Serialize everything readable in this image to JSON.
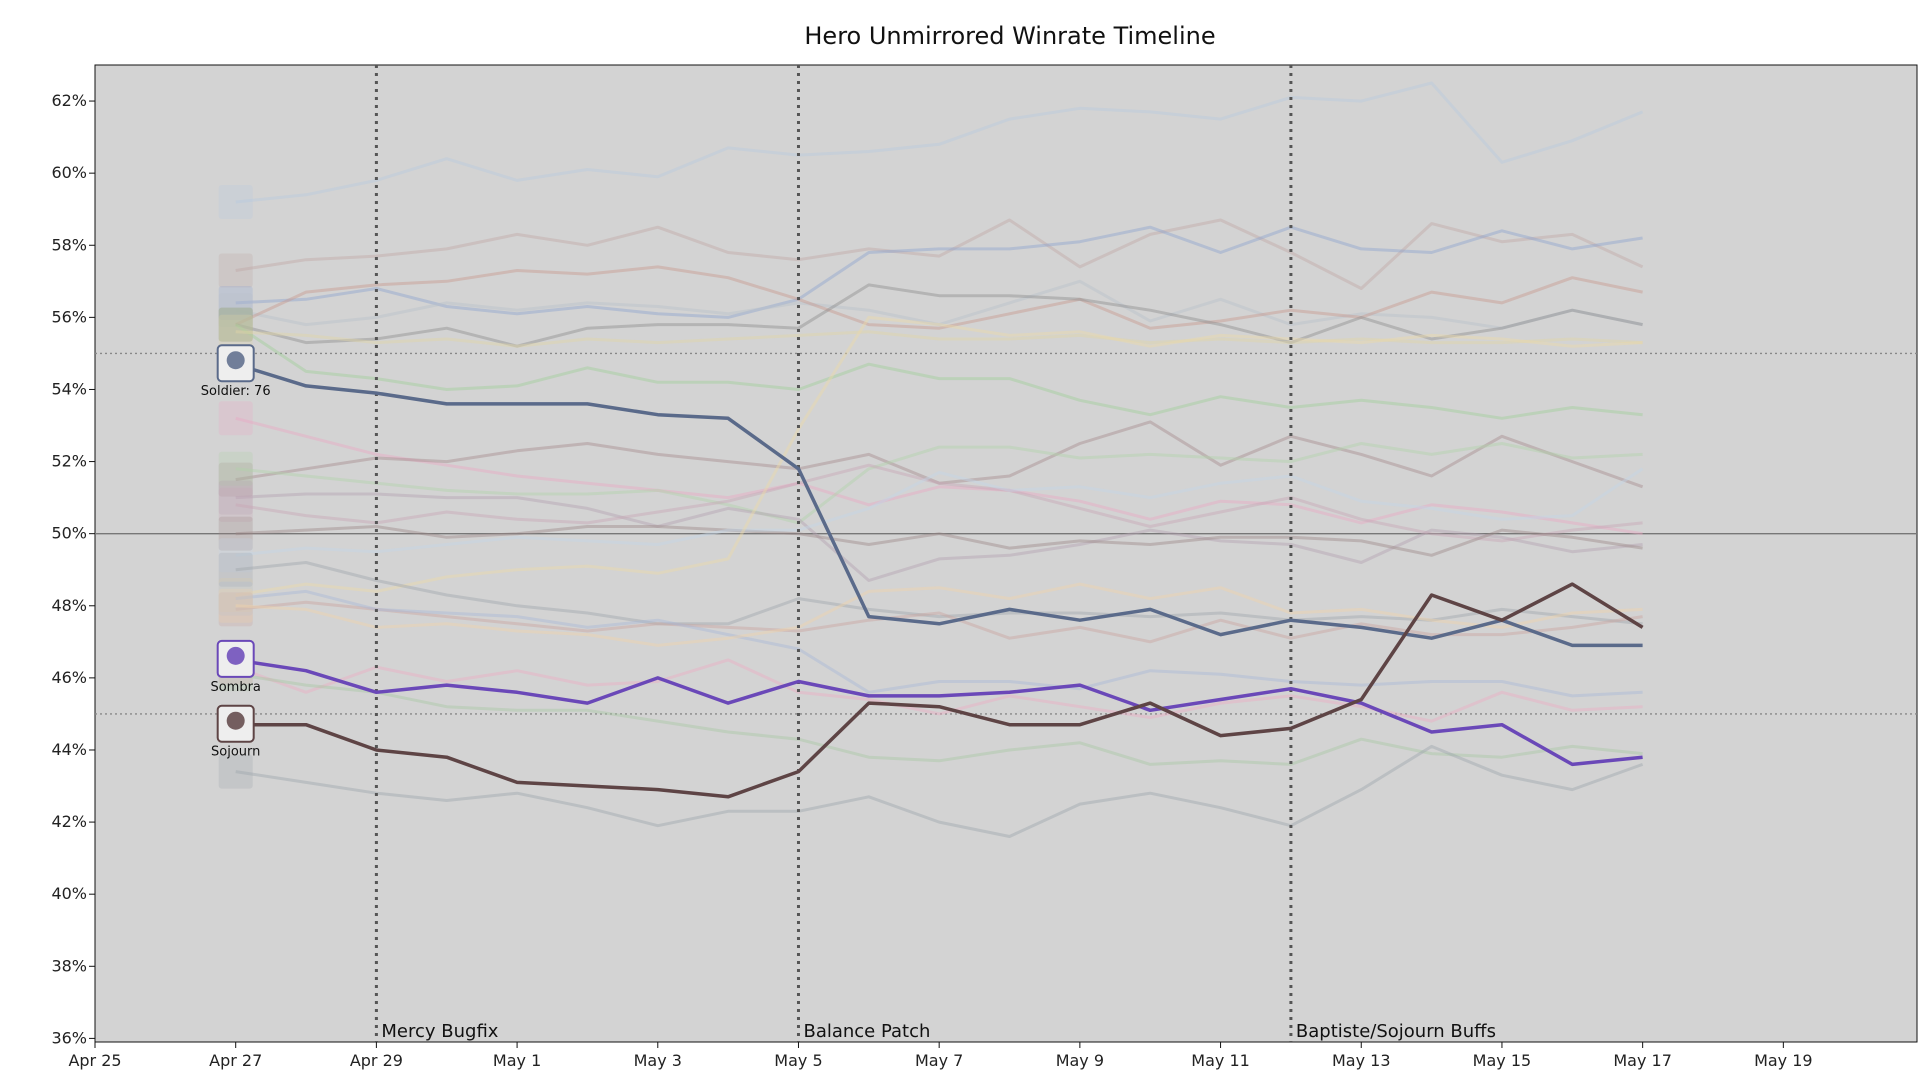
{
  "chart_data": {
    "type": "line",
    "title": "Hero Unmirrored Winrate Timeline",
    "xlabel": "",
    "ylabel": "",
    "x_ticks": [
      "Apr 25",
      "Apr 27",
      "Apr 29",
      "May 1",
      "May 3",
      "May 5",
      "May 7",
      "May 9",
      "May 11",
      "May 13",
      "May 15",
      "May 17",
      "May 19"
    ],
    "x_tick_days": [
      0,
      2,
      4,
      6,
      8,
      10,
      12,
      14,
      16,
      18,
      20,
      22,
      24
    ],
    "y_ticks": [
      "36%",
      "38%",
      "40%",
      "42%",
      "44%",
      "46%",
      "48%",
      "50%",
      "52%",
      "54%",
      "56%",
      "58%",
      "60%",
      "62%"
    ],
    "ylim": [
      35.9,
      63
    ],
    "reference_lines": [
      {
        "value": 50,
        "style": "solid"
      },
      {
        "value": 55,
        "style": "dotted"
      },
      {
        "value": 45,
        "style": "dotted"
      }
    ],
    "events": [
      {
        "label": "Mercy Bugfix",
        "date": "Apr 29"
      },
      {
        "label": "Balance Patch",
        "date": "May 5"
      },
      {
        "label": "Baptiste/Sojourn Buffs",
        "date": "Baptiste/Sojourn Buffs"
      }
    ],
    "dates": [
      "Apr 27",
      "Apr 28",
      "Apr 29",
      "Apr 30",
      "May 1",
      "May 2",
      "May 3",
      "May 4",
      "May 5",
      "May 6",
      "May 7",
      "May 8",
      "May 9",
      "May 10",
      "May 11",
      "May 12",
      "May 13",
      "May 14",
      "May 15",
      "May 16",
      "May 17"
    ],
    "series": [
      {
        "name": "Soldier: 76",
        "color": "#5a6a8a",
        "highlight": true,
        "values": [
          54.7,
          54.1,
          53.9,
          53.6,
          53.6,
          53.6,
          53.3,
          53.2,
          51.8,
          47.7,
          47.5,
          47.9,
          47.6,
          47.9,
          47.2,
          47.6,
          47.4,
          47.1,
          47.6,
          46.9,
          46.9
        ]
      },
      {
        "name": "Sombra",
        "color": "#6a48b8",
        "highlight": true,
        "values": [
          46.5,
          46.2,
          45.6,
          45.8,
          45.6,
          45.3,
          46.0,
          45.3,
          45.9,
          45.5,
          45.5,
          45.6,
          45.8,
          45.1,
          45.4,
          45.7,
          45.3,
          44.5,
          44.7,
          43.6,
          43.8
        ]
      },
      {
        "name": "Sojourn",
        "color": "#5e4445",
        "highlight": true,
        "values": [
          44.7,
          44.7,
          44.0,
          43.8,
          43.1,
          43.0,
          42.9,
          42.7,
          43.4,
          45.3,
          45.2,
          44.7,
          44.7,
          45.3,
          44.4,
          44.6,
          45.4,
          48.3,
          47.6,
          48.6,
          47.4
        ]
      },
      {
        "color": "#b7c9dd",
        "values": [
          59.2,
          59.4,
          59.8,
          60.4,
          59.8,
          60.1,
          59.9,
          60.7,
          60.5,
          60.6,
          60.8,
          61.5,
          61.8,
          61.7,
          61.5,
          62.1,
          62.0,
          62.5,
          60.3,
          60.9,
          61.7
        ]
      },
      {
        "color": "#c0a9a6",
        "values": [
          57.3,
          57.6,
          57.7,
          57.9,
          58.3,
          58.0,
          58.5,
          57.8,
          57.6,
          57.9,
          57.7,
          58.7,
          57.4,
          58.3,
          58.7,
          57.8,
          56.8,
          58.6,
          58.1,
          58.3,
          57.4
        ]
      },
      {
        "color": "#8ea5cf",
        "values": [
          56.4,
          56.5,
          56.8,
          56.3,
          56.1,
          56.3,
          56.1,
          56.0,
          56.5,
          57.8,
          57.9,
          57.9,
          58.1,
          58.5,
          57.8,
          58.5,
          57.9,
          57.8,
          58.4,
          57.9,
          58.2
        ]
      },
      {
        "color": "#b9c0c9",
        "values": [
          56.2,
          55.8,
          56.0,
          56.4,
          56.2,
          56.4,
          56.3,
          56.1,
          56.4,
          56.2,
          55.8,
          56.4,
          57.0,
          55.9,
          56.5,
          55.8,
          56.1,
          56.0,
          55.7,
          56.2,
          55.8
        ]
      },
      {
        "color": "#c79a8e",
        "values": [
          55.8,
          56.7,
          56.9,
          57.0,
          57.3,
          57.2,
          57.4,
          57.1,
          56.5,
          55.8,
          55.7,
          56.1,
          56.5,
          55.7,
          55.9,
          56.2,
          56.0,
          56.7,
          56.4,
          57.1,
          56.7
        ]
      },
      {
        "color": "#8f8f8f",
        "values": [
          55.8,
          55.3,
          55.4,
          55.7,
          55.2,
          55.7,
          55.8,
          55.8,
          55.7,
          56.9,
          56.6,
          56.6,
          56.5,
          56.2,
          55.8,
          55.3,
          56.0,
          55.4,
          55.7,
          56.2,
          55.8
        ]
      },
      {
        "color": "#9fcf9a",
        "values": [
          55.8,
          54.5,
          54.3,
          54.0,
          54.1,
          54.6,
          54.2,
          54.2,
          54.0,
          54.7,
          54.3,
          54.3,
          53.7,
          53.3,
          53.8,
          53.5,
          53.7,
          53.5,
          53.2,
          53.5,
          53.3
        ]
      },
      {
        "color": "#e0d4a6",
        "values": [
          55.6,
          55.5,
          55.3,
          55.4,
          55.2,
          55.4,
          55.3,
          55.4,
          55.5,
          55.6,
          55.4,
          55.4,
          55.5,
          55.3,
          55.4,
          55.3,
          55.4,
          55.3,
          55.3,
          55.4,
          55.3
        ]
      },
      {
        "color": "#e8a9c4",
        "values": [
          53.2,
          52.7,
          52.2,
          51.9,
          51.6,
          51.4,
          51.2,
          51.0,
          51.4,
          50.8,
          51.3,
          51.2,
          50.9,
          50.4,
          50.9,
          50.8,
          50.3,
          50.8,
          50.6,
          50.3,
          50.0
        ]
      },
      {
        "color": "#a68b8f",
        "values": [
          51.5,
          51.8,
          52.1,
          52.0,
          52.3,
          52.5,
          52.2,
          52.0,
          51.8,
          52.2,
          51.4,
          51.6,
          52.5,
          53.1,
          51.9,
          52.7,
          52.2,
          51.6,
          52.7,
          52.0,
          51.3
        ]
      },
      {
        "color": "#b1d2aa",
        "values": [
          51.8,
          51.6,
          51.4,
          51.2,
          51.1,
          51.1,
          51.2,
          50.8,
          50.3,
          51.8,
          52.4,
          52.4,
          52.1,
          52.2,
          52.1,
          52.0,
          52.5,
          52.2,
          52.5,
          52.1,
          52.2
        ]
      },
      {
        "color": "#b3a2b1",
        "values": [
          51.0,
          51.1,
          51.1,
          51.0,
          51.0,
          50.7,
          50.2,
          50.7,
          50.4,
          48.7,
          49.3,
          49.4,
          49.7,
          50.1,
          49.8,
          49.7,
          49.2,
          50.1,
          49.9,
          49.5,
          49.7
        ]
      },
      {
        "color": "#c8a6b6",
        "values": [
          50.8,
          50.5,
          50.3,
          50.6,
          50.4,
          50.3,
          50.6,
          50.9,
          51.4,
          51.9,
          51.4,
          51.2,
          50.7,
          50.2,
          50.6,
          51.0,
          50.4,
          50.0,
          49.8,
          50.1,
          50.3
        ]
      },
      {
        "color": "#9d8a8a",
        "values": [
          50.0,
          50.1,
          50.2,
          49.9,
          50.0,
          50.2,
          50.2,
          50.1,
          50.0,
          49.7,
          50.0,
          49.6,
          49.8,
          49.7,
          49.9,
          49.9,
          49.8,
          49.4,
          50.1,
          49.9,
          49.6
        ]
      },
      {
        "color": "#c4d4e6",
        "values": [
          49.4,
          49.6,
          49.5,
          49.7,
          49.9,
          49.8,
          49.7,
          50.1,
          50.1,
          50.7,
          51.7,
          51.2,
          51.3,
          51.0,
          51.4,
          51.6,
          50.9,
          50.7,
          50.4,
          50.5,
          51.8
        ]
      },
      {
        "color": "#ecd9a9",
        "values": [
          48.3,
          48.6,
          48.4,
          48.8,
          49.0,
          49.1,
          48.9,
          49.3,
          52.9,
          56.0,
          55.8,
          55.5,
          55.6,
          55.2,
          55.5,
          55.4,
          55.3,
          55.5,
          55.4,
          55.2,
          55.3
        ]
      },
      {
        "color": "#a0a6ad",
        "values": [
          49.0,
          49.2,
          48.7,
          48.3,
          48.0,
          47.8,
          47.5,
          47.5,
          48.2,
          47.9,
          47.7,
          47.8,
          47.8,
          47.7,
          47.8,
          47.6,
          47.7,
          47.6,
          47.9,
          47.7,
          47.5
        ]
      },
      {
        "color": "#c9a39f",
        "values": [
          47.9,
          48.1,
          47.9,
          47.7,
          47.5,
          47.3,
          47.5,
          47.4,
          47.3,
          47.6,
          47.8,
          47.1,
          47.4,
          47.0,
          47.6,
          47.1,
          47.5,
          47.2,
          47.2,
          47.4,
          47.7
        ]
      },
      {
        "color": "#a8b9d6",
        "values": [
          48.2,
          48.4,
          47.9,
          47.8,
          47.7,
          47.4,
          47.6,
          47.2,
          46.8,
          45.6,
          45.9,
          45.9,
          45.7,
          46.2,
          46.1,
          45.9,
          45.8,
          45.9,
          45.9,
          45.5,
          45.6
        ]
      },
      {
        "color": "#f0d2aa",
        "values": [
          48.0,
          47.9,
          47.4,
          47.5,
          47.3,
          47.2,
          46.9,
          47.1,
          47.4,
          48.4,
          48.5,
          48.2,
          48.6,
          48.2,
          48.5,
          47.8,
          47.9,
          47.6,
          47.4,
          47.8,
          47.9
        ]
      },
      {
        "color": "#ecaec3",
        "values": [
          46.3,
          45.6,
          46.3,
          45.9,
          46.2,
          45.8,
          45.9,
          46.5,
          45.6,
          45.4,
          45.0,
          45.5,
          45.2,
          44.9,
          45.3,
          45.5,
          45.2,
          44.8,
          45.6,
          45.1,
          45.2
        ]
      },
      {
        "color": "#a9c7a3",
        "values": [
          46.1,
          45.8,
          45.6,
          45.2,
          45.1,
          45.1,
          44.8,
          44.5,
          44.3,
          43.8,
          43.7,
          44.0,
          44.2,
          43.6,
          43.7,
          43.6,
          44.3,
          43.9,
          43.8,
          44.1,
          43.9
        ]
      },
      {
        "color": "#9ea7ae",
        "values": [
          43.4,
          43.1,
          42.8,
          42.6,
          42.8,
          42.4,
          41.9,
          42.3,
          42.3,
          42.7,
          42.0,
          41.6,
          42.5,
          42.8,
          42.4,
          41.9,
          42.9,
          44.1,
          43.3,
          42.9,
          43.6
        ]
      }
    ]
  }
}
